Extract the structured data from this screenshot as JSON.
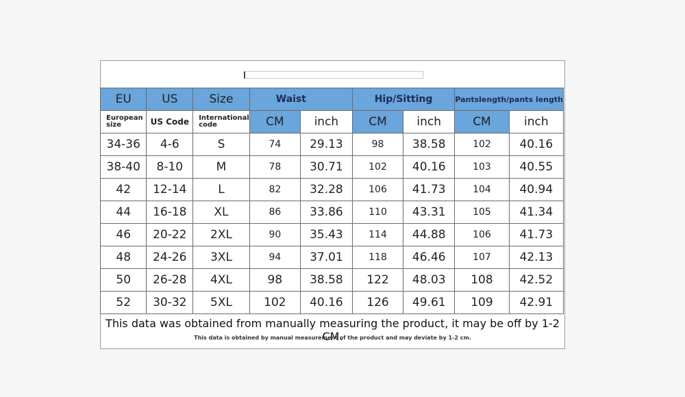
{
  "table": {
    "header": [
      "EU",
      "US",
      "Size",
      "Waist",
      "Hip/Sitting",
      "Pantslength/pants length"
    ],
    "subheader": [
      "European size",
      "US Code",
      "International code",
      "CM",
      "inch",
      "CM",
      "inch",
      "CM",
      "inch"
    ],
    "rows": [
      [
        "34-36",
        "4-6",
        "S",
        "74",
        "29.13",
        "98",
        "38.58",
        "102",
        "40.16"
      ],
      [
        "38-40",
        "8-10",
        "M",
        "78",
        "30.71",
        "102",
        "40.16",
        "103",
        "40.55"
      ],
      [
        "42",
        "12-14",
        "L",
        "82",
        "32.28",
        "106",
        "41.73",
        "104",
        "40.94"
      ],
      [
        "44",
        "16-18",
        "XL",
        "86",
        "33.86",
        "110",
        "43.31",
        "105",
        "41.34"
      ],
      [
        "46",
        "20-22",
        "2XL",
        "90",
        "35.43",
        "114",
        "44.88",
        "106",
        "41.73"
      ],
      [
        "48",
        "24-26",
        "3XL",
        "94",
        "37.01",
        "118",
        "46.46",
        "107",
        "42.13"
      ],
      [
        "50",
        "26-28",
        "4XL",
        "98",
        "38.58",
        "122",
        "48.03",
        "108",
        "42.52"
      ],
      [
        "52",
        "30-32",
        "5XL",
        "102",
        "40.16",
        "126",
        "49.61",
        "109",
        "42.91"
      ]
    ]
  },
  "footer": {
    "note": "This data was obtained from manually measuring the product, it may be off by 1-2 CM.",
    "small_note": "This data is obtained by manual measurement of the product and may deviate by 1-2 cm."
  }
}
